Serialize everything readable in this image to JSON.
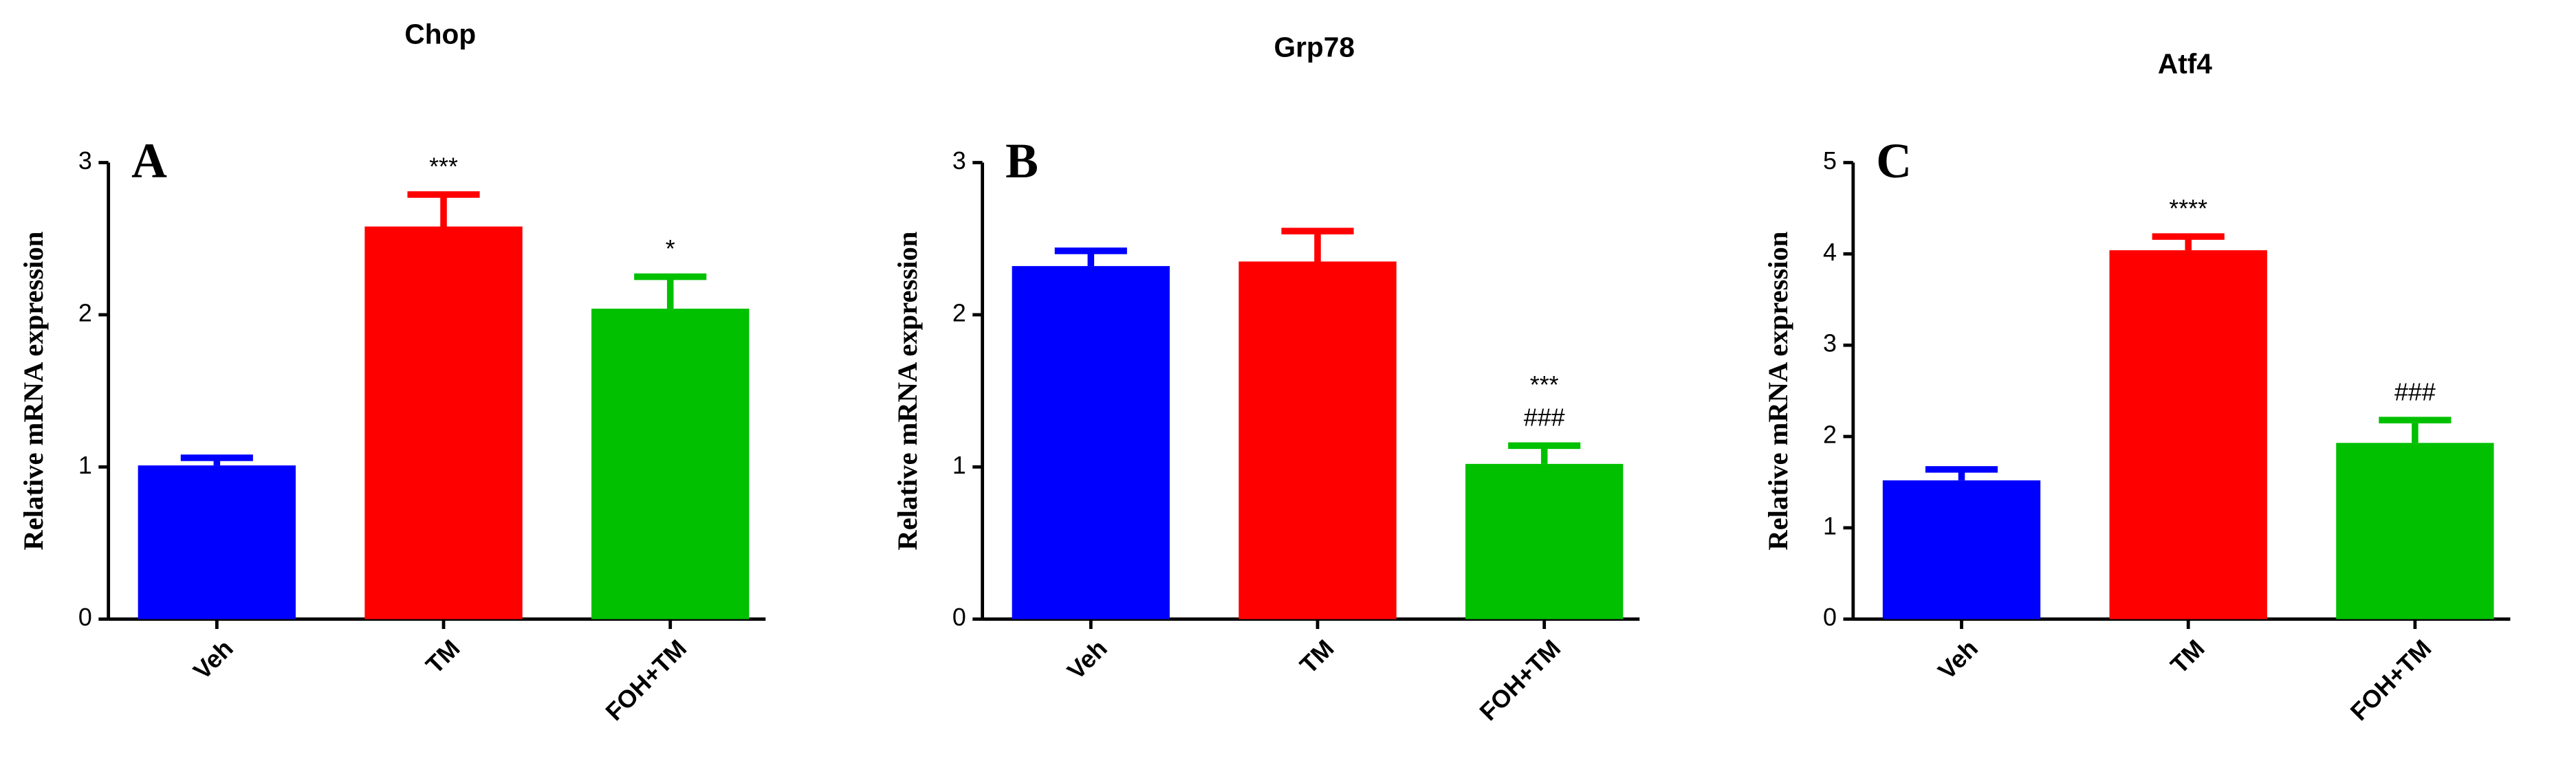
{
  "chart_data": [
    {
      "type": "bar",
      "title": "Chop",
      "panel": "A",
      "y_label": "Relative mRNA expression",
      "categories": [
        "Veh",
        "TM",
        "FOH+TM"
      ],
      "values": [
        1.01,
        2.58,
        2.04
      ],
      "errors": [
        0.05,
        0.21,
        0.21
      ],
      "colors": [
        "#0000ff",
        "#ff0000",
        "#00c000"
      ],
      "annotations": [
        {
          "category": "TM",
          "lines": [
            "***"
          ]
        },
        {
          "category": "FOH+TM",
          "lines": [
            "*"
          ]
        }
      ],
      "ylim": [
        0,
        3
      ],
      "yticks": [
        0,
        1,
        2,
        3
      ]
    },
    {
      "type": "bar",
      "title": "Grp78",
      "panel": "B",
      "y_label": "Relative mRNA expression",
      "categories": [
        "Veh",
        "TM",
        "FOH+TM"
      ],
      "values": [
        2.32,
        2.35,
        1.02
      ],
      "errors": [
        0.1,
        0.2,
        0.12
      ],
      "colors": [
        "#0000ff",
        "#ff0000",
        "#00c000"
      ],
      "annotations": [
        {
          "category": "FOH+TM",
          "lines": [
            "***",
            "###"
          ]
        }
      ],
      "ylim": [
        0,
        3
      ],
      "yticks": [
        0,
        1,
        2,
        3
      ]
    },
    {
      "type": "bar",
      "title": "Atf4",
      "panel": "C",
      "y_label": "Relative mRNA expression",
      "categories": [
        "Veh",
        "TM",
        "FOH+TM"
      ],
      "values": [
        1.52,
        4.04,
        1.93
      ],
      "errors": [
        0.12,
        0.15,
        0.25
      ],
      "colors": [
        "#0000ff",
        "#ff0000",
        "#00c000"
      ],
      "annotations": [
        {
          "category": "TM",
          "lines": [
            "****"
          ]
        },
        {
          "category": "FOH+TM",
          "lines": [
            "###"
          ]
        }
      ],
      "ylim": [
        0,
        5
      ],
      "yticks": [
        0,
        1,
        2,
        3,
        4,
        5
      ]
    }
  ]
}
